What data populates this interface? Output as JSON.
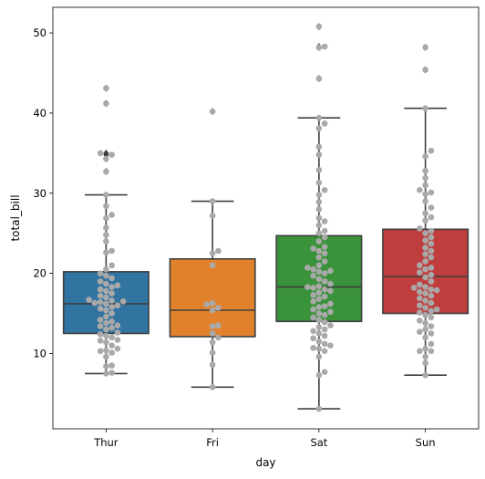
{
  "chart_data": {
    "type": "box",
    "title": "",
    "xlabel": "day",
    "ylabel": "total_bill",
    "categories": [
      "Thur",
      "Fri",
      "Sat",
      "Sun"
    ],
    "ylim": [
      0.6,
      53.2
    ],
    "yticks": [
      10,
      20,
      30,
      40,
      50
    ],
    "grid": false,
    "boxes": [
      {
        "category": "Thur",
        "color": "#3274a1",
        "whislo": 7.5,
        "q1": 12.5,
        "median": 16.2,
        "q3": 20.2,
        "whishi": 29.8,
        "fliers": [
          32.7,
          34.3,
          34.8,
          35.0,
          41.2,
          43.1
        ]
      },
      {
        "category": "Fri",
        "color": "#e1812c",
        "whislo": 5.8,
        "q1": 12.1,
        "median": 15.4,
        "q3": 21.8,
        "whishi": 29.0,
        "fliers": [
          40.2
        ]
      },
      {
        "category": "Sat",
        "color": "#3a923a",
        "whislo": 3.1,
        "q1": 14.0,
        "median": 18.3,
        "q3": 24.7,
        "whishi": 39.4,
        "fliers": [
          44.3,
          48.2,
          48.3,
          50.8
        ]
      },
      {
        "category": "Sun",
        "color": "#c03d3e",
        "whislo": 7.3,
        "q1": 15.0,
        "median": 19.6,
        "q3": 25.5,
        "whishi": 40.6,
        "fliers": [
          45.4,
          48.2
        ]
      }
    ],
    "points": {
      "color": "#a9a9a9",
      "Thur": [
        7.5,
        7.6,
        8.4,
        8.5,
        9.6,
        10.1,
        10.3,
        10.4,
        10.6,
        11.0,
        11.4,
        11.6,
        11.7,
        12.0,
        12.2,
        12.4,
        12.6,
        13.0,
        13.2,
        13.4,
        13.5,
        13.8,
        14.0,
        14.2,
        14.6,
        15.0,
        15.4,
        15.6,
        15.8,
        16.0,
        16.2,
        16.3,
        16.4,
        16.5,
        16.6,
        16.7,
        17.0,
        17.2,
        17.5,
        17.8,
        18.0,
        18.3,
        18.5,
        18.7,
        19.0,
        19.4,
        19.7,
        20.0,
        20.5,
        21.0,
        22.6,
        22.8,
        24.0,
        24.8,
        25.7,
        26.9,
        27.3,
        28.4,
        29.8,
        32.7,
        34.3,
        34.8,
        35.0,
        41.2,
        43.1
      ],
      "Fri": [
        5.8,
        8.6,
        10.1,
        11.4,
        12.0,
        12.5,
        13.4,
        13.5,
        15.4,
        15.7,
        16.1,
        16.3,
        21.0,
        22.5,
        22.8,
        27.2,
        29.0,
        40.2
      ],
      "Sat": [
        3.1,
        7.3,
        7.7,
        9.6,
        10.3,
        10.6,
        10.7,
        11.0,
        11.2,
        11.5,
        11.9,
        12.2,
        12.5,
        12.8,
        13.0,
        13.3,
        13.5,
        13.9,
        14.2,
        14.5,
        14.8,
        15.0,
        15.2,
        15.5,
        15.8,
        15.9,
        16.2,
        16.5,
        16.8,
        17.1,
        17.3,
        17.6,
        17.8,
        18.0,
        18.2,
        18.3,
        18.4,
        18.7,
        19.0,
        19.3,
        19.7,
        20.0,
        20.2,
        20.3,
        20.5,
        20.7,
        21.0,
        21.5,
        22.0,
        22.5,
        22.8,
        23.1,
        23.3,
        24.0,
        24.5,
        25.0,
        25.3,
        26.0,
        26.5,
        26.9,
        28.0,
        28.9,
        29.8,
        30.4,
        31.3,
        32.9,
        34.8,
        35.8,
        38.1,
        38.7,
        39.4,
        44.3,
        48.2,
        48.3,
        50.8
      ],
      "Sun": [
        7.3,
        8.8,
        9.6,
        10.3,
        10.3,
        10.6,
        11.2,
        12.0,
        12.5,
        12.7,
        13.0,
        13.4,
        13.8,
        14.1,
        14.5,
        14.8,
        15.1,
        15.3,
        15.5,
        15.7,
        16.0,
        16.3,
        16.6,
        16.9,
        17.2,
        17.5,
        17.7,
        17.9,
        18.0,
        18.2,
        18.3,
        18.6,
        19.0,
        19.5,
        19.8,
        20.1,
        20.5,
        20.7,
        21.0,
        21.5,
        22.0,
        22.4,
        22.8,
        23.2,
        23.7,
        24.1,
        24.5,
        25.0,
        25.3,
        25.6,
        26.6,
        27.0,
        27.5,
        28.2,
        29.0,
        29.9,
        30.1,
        30.4,
        31.0,
        31.9,
        32.8,
        34.6,
        35.3,
        40.6,
        45.4,
        48.2
      ]
    }
  }
}
